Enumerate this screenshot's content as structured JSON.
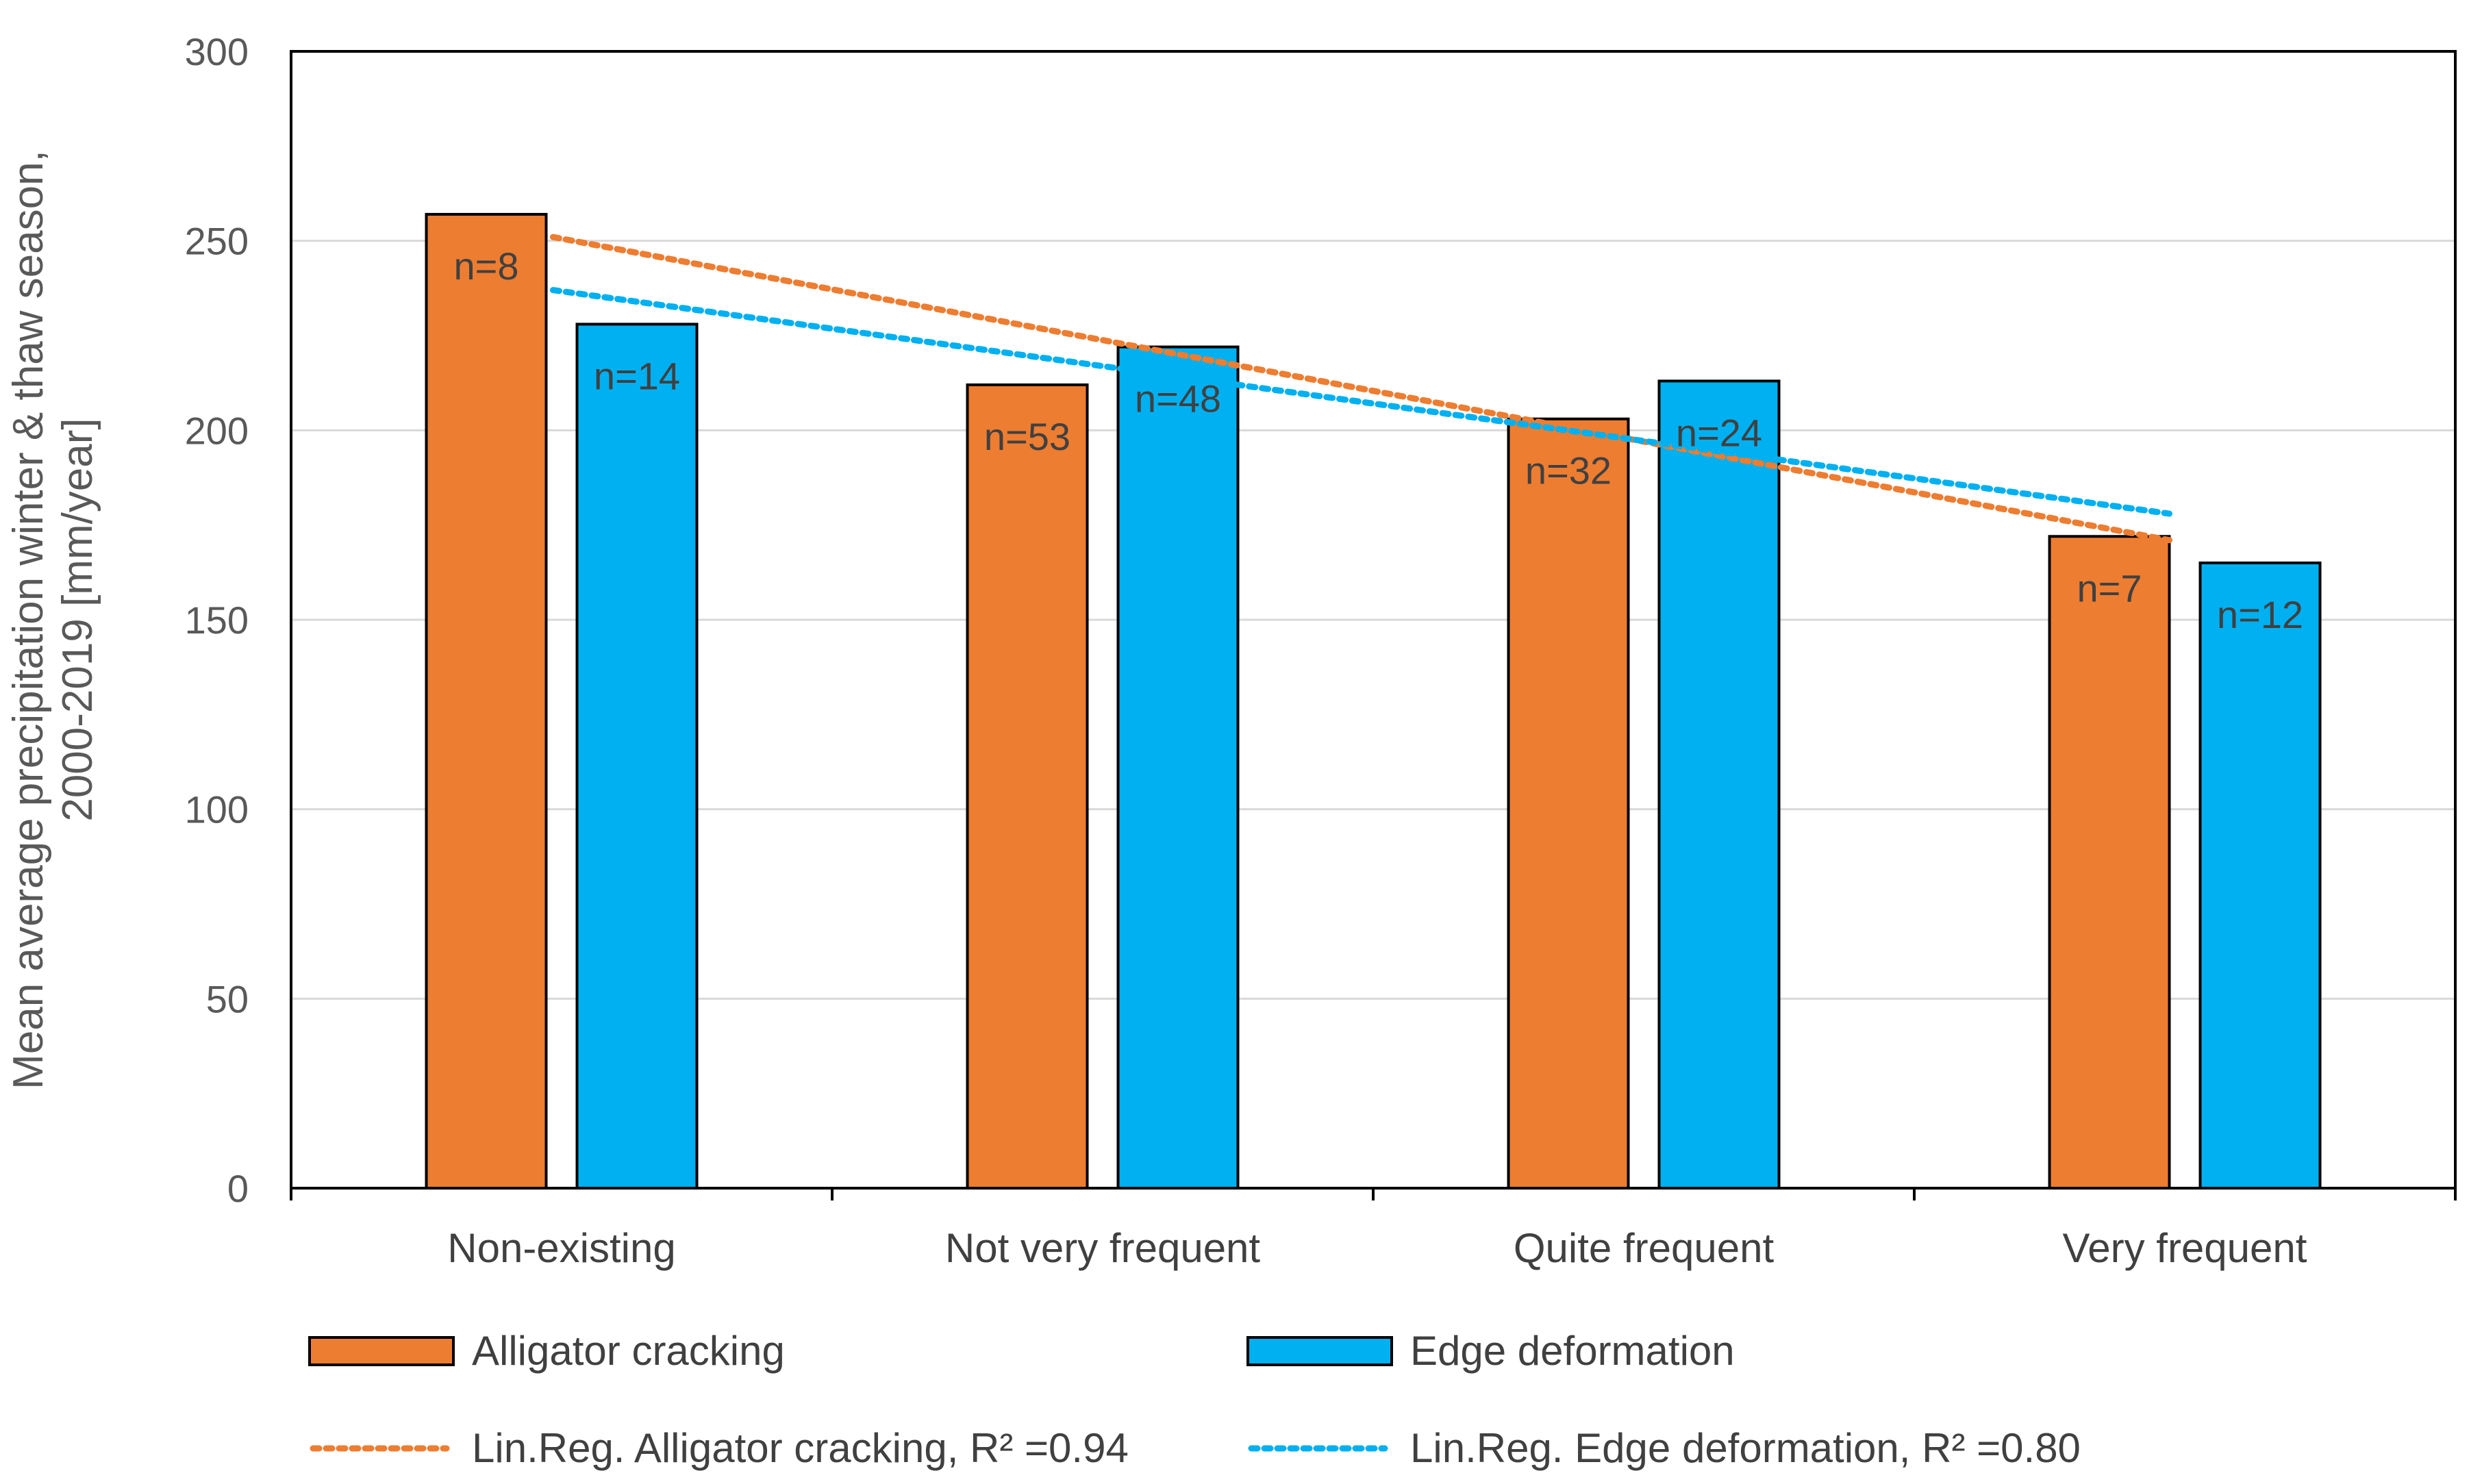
{
  "chart_data": {
    "type": "bar",
    "title": "",
    "xlabel": "",
    "ylabel_lines": [
      "Mean average precipitation winter & thaw season,",
      "2000-2019 [mm/year]"
    ],
    "ylim": [
      0,
      300
    ],
    "yticks": [
      0,
      50,
      100,
      150,
      200,
      250,
      300
    ],
    "ytick_labels": [
      "0",
      "50",
      "100",
      "150",
      "200",
      "250",
      "300"
    ],
    "grid": true,
    "categories": [
      "Non-existing",
      "Not very frequent",
      "Quite frequent",
      "Very frequent"
    ],
    "series": [
      {
        "name": "Alligator cracking",
        "color": "#ED7D31",
        "values": [
          257,
          212,
          203,
          172
        ],
        "labels": [
          "n=8",
          "n=53",
          "n=32",
          "n=7"
        ]
      },
      {
        "name": "Edge deformation",
        "color": "#00B0F0",
        "values": [
          228,
          222,
          213,
          165
        ],
        "labels": [
          "n=14",
          "n=48",
          "n=24",
          "n=12"
        ]
      }
    ],
    "trendlines": [
      {
        "name": "Lin.Reg. Alligator cracking, R² =0.94",
        "color": "#ED7D31",
        "start": 251,
        "end": 171
      },
      {
        "name": "Lin.Reg. Edge deformation, R² =0.80",
        "color": "#00B0F0",
        "start": 237,
        "end": 178
      }
    ],
    "legend_position": "bottom"
  }
}
